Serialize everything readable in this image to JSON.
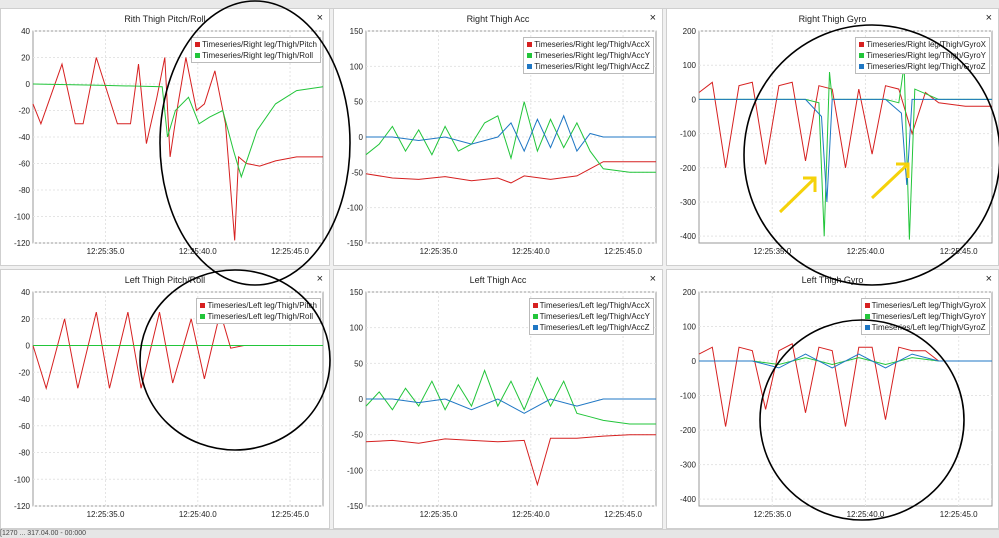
{
  "colors": {
    "red": "#d62020",
    "green": "#22c53a",
    "blue": "#1f77c4",
    "annotation": "#f5d20a",
    "circle": "#000000"
  },
  "panels": [
    {
      "title": "Rith Thigh Pitch/Roll",
      "close": "×",
      "legend": [
        "Timeseries/Right leg/Thigh/Pitch",
        "Timeseries/Right leg/Thigh/Roll"
      ],
      "legend_colors": [
        "red",
        "green"
      ],
      "y_ticks": [
        40,
        20,
        0,
        -20,
        -40,
        -60,
        -80,
        -100,
        -120
      ],
      "x_ticks": [
        "12:25:35.0",
        "12:25:40.0",
        "12:25:45.0"
      ]
    },
    {
      "title": "Right Thigh Acc",
      "close": "×",
      "legend": [
        "Timeseries/Right leg/Thigh/AccX",
        "Timeseries/Right leg/Thigh/AccY",
        "Timeseries/Right leg/Thigh/AccZ"
      ],
      "legend_colors": [
        "red",
        "green",
        "blue"
      ],
      "y_ticks": [
        150,
        100,
        50,
        0,
        -50,
        -100,
        -150
      ],
      "x_ticks": [
        "12:25:35.0",
        "12:25:40.0",
        "12:25:45.0"
      ]
    },
    {
      "title": "Right Thigh Gyro",
      "close": "×",
      "legend": [
        "Timeseries/Right leg/Thigh/GyroX",
        "Timeseries/Right leg/Thigh/GyroY",
        "Timeseries/Right leg/Thigh/GyroZ"
      ],
      "legend_colors": [
        "red",
        "green",
        "blue"
      ],
      "y_ticks": [
        200,
        100,
        0,
        -100,
        -200,
        -300,
        -400
      ],
      "x_ticks": [
        "12:25:35.0",
        "12:25:40.0",
        "12:25:45.0"
      ]
    },
    {
      "title": "Left Thigh Pitch/Roll",
      "close": "×",
      "legend": [
        "Timeseries/Left leg/Thigh/Pitch",
        "Timeseries/Left leg/Thigh/Roll"
      ],
      "legend_colors": [
        "red",
        "green"
      ],
      "y_ticks": [
        40,
        20,
        0,
        -20,
        -40,
        -60,
        -80,
        -100,
        -120
      ],
      "x_ticks": [
        "12:25:35.0",
        "12:25:40.0",
        "12:25:45.0"
      ]
    },
    {
      "title": "Left Thigh Acc",
      "close": "×",
      "legend": [
        "Timeseries/Left leg/Thigh/AccX",
        "Timeseries/Left leg/Thigh/AccY",
        "Timeseries/Left leg/Thigh/AccZ"
      ],
      "legend_colors": [
        "red",
        "green",
        "blue"
      ],
      "y_ticks": [
        150,
        100,
        50,
        0,
        -50,
        -100,
        -150
      ],
      "x_ticks": [
        "12:25:35.0",
        "12:25:40.0",
        "12:25:45.0"
      ]
    },
    {
      "title": "Left Thigh Gyro",
      "close": "×",
      "legend": [
        "Timeseries/Left leg/Thigh/GyroX",
        "Timeseries/Left leg/Thigh/GyroY",
        "Timeseries/Left leg/Thigh/GyroZ"
      ],
      "legend_colors": [
        "red",
        "green",
        "blue"
      ],
      "y_ticks": [
        200,
        100,
        0,
        -100,
        -200,
        -300,
        -400
      ],
      "x_ticks": [
        "12:25:35.0",
        "12:25:40.0",
        "12:25:45.0"
      ]
    }
  ],
  "chart_data": [
    {
      "type": "line",
      "title": "Rith Thigh Pitch/Roll",
      "ylim": [
        -120,
        40
      ],
      "x_tick_labels": [
        "12:25:35.0",
        "12:25:40.0",
        "12:25:45.0"
      ],
      "series": [
        {
          "name": "Timeseries/Right leg/Thigh/Pitch",
          "color": "red",
          "x": [
            0,
            0.6,
            2.2,
            3.2,
            3.8,
            4.8,
            6.4,
            7.4,
            8.0,
            8.6,
            9.4,
            10.0,
            10.4,
            11.0,
            11.6,
            12.4,
            13.0,
            13.8,
            14.6,
            15.3,
            15.6,
            16.2,
            17.2,
            18.4,
            20.0,
            22.0
          ],
          "y": [
            -15,
            -30,
            15,
            -30,
            -30,
            20,
            -30,
            -30,
            15,
            -45,
            -10,
            20,
            -55,
            -15,
            20,
            -20,
            -15,
            10,
            -30,
            -118,
            -55,
            -60,
            -62,
            -58,
            -55,
            -55
          ]
        },
        {
          "name": "Timeseries/Right leg/Thigh/Roll",
          "color": "green",
          "x": [
            0,
            5,
            9.8,
            10.2,
            10.8,
            11.8,
            12.6,
            13.4,
            14.4,
            15.2,
            15.8,
            17.0,
            18.4,
            20.0,
            22.0
          ],
          "y": [
            0,
            -1,
            -2,
            -40,
            -20,
            -10,
            -30,
            -25,
            -20,
            -50,
            -70,
            -35,
            -15,
            -5,
            -2
          ]
        }
      ]
    },
    {
      "type": "line",
      "title": "Right Thigh Acc",
      "ylim": [
        -150,
        150
      ],
      "x_tick_labels": [
        "12:25:35.0",
        "12:25:40.0",
        "12:25:45.0"
      ],
      "series": [
        {
          "name": "Timeseries/Right leg/Thigh/AccX",
          "color": "red",
          "x": [
            0,
            2,
            4,
            6,
            8,
            10,
            11,
            12,
            14,
            16,
            17,
            18,
            20,
            22
          ],
          "y": [
            -52,
            -58,
            -60,
            -56,
            -62,
            -58,
            -65,
            -55,
            -60,
            -55,
            -45,
            -35,
            -35,
            -35
          ]
        },
        {
          "name": "Timeseries/Right leg/Thigh/AccY",
          "color": "green",
          "x": [
            0,
            1,
            2,
            3,
            4,
            5,
            6,
            7,
            8,
            9,
            10,
            11,
            12,
            13,
            14,
            15,
            16,
            17,
            18,
            20,
            22
          ],
          "y": [
            -25,
            -10,
            15,
            -20,
            10,
            -25,
            15,
            -20,
            -10,
            20,
            30,
            -30,
            50,
            -20,
            25,
            -15,
            20,
            -20,
            -45,
            -50,
            -50
          ]
        },
        {
          "name": "Timeseries/Right leg/Thigh/AccZ",
          "color": "blue",
          "x": [
            0,
            2,
            4,
            6,
            8,
            10,
            11,
            12,
            13,
            14,
            15,
            16,
            17,
            18,
            20,
            22
          ],
          "y": [
            0,
            0,
            -5,
            0,
            -10,
            0,
            20,
            -20,
            25,
            -15,
            30,
            -20,
            5,
            0,
            0,
            0
          ]
        }
      ]
    },
    {
      "type": "line",
      "title": "Right Thigh Gyro",
      "ylim": [
        -420,
        200
      ],
      "x_tick_labels": [
        "12:25:35.0",
        "12:25:40.0",
        "12:25:45.0"
      ],
      "series": [
        {
          "name": "Timeseries/Right leg/Thigh/GyroX",
          "color": "red",
          "x": [
            0,
            1,
            2,
            3,
            4,
            5,
            6,
            7,
            8,
            9,
            10,
            11,
            12,
            13,
            14,
            15,
            16,
            17,
            18,
            20,
            22
          ],
          "y": [
            20,
            50,
            -200,
            40,
            50,
            -190,
            40,
            50,
            -180,
            40,
            30,
            -200,
            30,
            -160,
            40,
            30,
            -100,
            20,
            -10,
            -20,
            -20
          ]
        },
        {
          "name": "Timeseries/Right leg/Thigh/GyroY",
          "color": "green",
          "x": [
            0,
            4,
            8,
            9,
            9.4,
            9.8,
            10,
            12,
            14,
            15,
            15.4,
            15.8,
            16.2,
            18,
            20,
            22
          ],
          "y": [
            0,
            0,
            0,
            -10,
            -400,
            80,
            0,
            0,
            0,
            -10,
            100,
            -410,
            30,
            0,
            0,
            0
          ]
        },
        {
          "name": "Timeseries/Right leg/Thigh/GyroZ",
          "color": "blue",
          "x": [
            0,
            4,
            8,
            9.2,
            9.6,
            10,
            12,
            14,
            15.2,
            15.6,
            16,
            18,
            22
          ],
          "y": [
            0,
            0,
            0,
            -50,
            -300,
            0,
            0,
            0,
            -40,
            -250,
            0,
            0,
            0
          ]
        }
      ]
    },
    {
      "type": "line",
      "title": "Left Thigh Pitch/Roll",
      "ylim": [
        -120,
        40
      ],
      "x_tick_labels": [
        "12:25:35.0",
        "12:25:40.0",
        "12:25:45.0"
      ],
      "series": [
        {
          "name": "Timeseries/Left leg/Thigh/Pitch",
          "color": "red",
          "x": [
            0,
            1,
            2.4,
            3.4,
            4.8,
            5.8,
            7.2,
            8.2,
            9.6,
            10.6,
            12.0,
            13.0,
            14.2,
            15.0,
            16.0,
            18.0,
            22.0
          ],
          "y": [
            0,
            -32,
            20,
            -32,
            25,
            -32,
            25,
            -32,
            25,
            -28,
            20,
            -25,
            25,
            -2,
            0,
            0,
            0
          ]
        },
        {
          "name": "Timeseries/Left leg/Thigh/Roll",
          "color": "green",
          "x": [
            0,
            5,
            10,
            15,
            22
          ],
          "y": [
            0,
            0,
            0,
            0,
            0
          ]
        }
      ]
    },
    {
      "type": "line",
      "title": "Left Thigh Acc",
      "ylim": [
        -150,
        150
      ],
      "x_tick_labels": [
        "12:25:35.0",
        "12:25:40.0",
        "12:25:45.0"
      ],
      "series": [
        {
          "name": "Timeseries/Left leg/Thigh/AccX",
          "color": "red",
          "x": [
            0,
            2,
            4,
            6,
            8,
            10,
            12,
            13,
            14,
            16,
            18,
            20,
            22
          ],
          "y": [
            -60,
            -58,
            -62,
            -56,
            -58,
            -60,
            -58,
            -120,
            -55,
            -55,
            -52,
            -50,
            -50
          ]
        },
        {
          "name": "Timeseries/Left leg/Thigh/AccY",
          "color": "green",
          "x": [
            0,
            1,
            2,
            3,
            4,
            5,
            6,
            7,
            8,
            9,
            10,
            11,
            12,
            13,
            14,
            15,
            16,
            17,
            18,
            20,
            22
          ],
          "y": [
            -10,
            10,
            -15,
            15,
            -10,
            25,
            -15,
            20,
            -10,
            40,
            -10,
            25,
            -15,
            30,
            -10,
            25,
            -20,
            -25,
            -30,
            -35,
            -35
          ]
        },
        {
          "name": "Timeseries/Left leg/Thigh/AccZ",
          "color": "blue",
          "x": [
            0,
            2,
            4,
            6,
            8,
            10,
            12,
            14,
            16,
            18,
            20,
            22
          ],
          "y": [
            0,
            0,
            -5,
            0,
            -15,
            0,
            -20,
            0,
            -10,
            0,
            0,
            0
          ]
        }
      ]
    },
    {
      "type": "line",
      "title": "Left Thigh Gyro",
      "ylim": [
        -420,
        200
      ],
      "x_tick_labels": [
        "12:25:35.0",
        "12:25:40.0",
        "12:25:45.0"
      ],
      "series": [
        {
          "name": "Timeseries/Left leg/Thigh/GyroX",
          "color": "red",
          "x": [
            0,
            1,
            2,
            3,
            4,
            5,
            6,
            7,
            8,
            9,
            10,
            11,
            12,
            13,
            14,
            15,
            16,
            17,
            18,
            20,
            22
          ],
          "y": [
            20,
            40,
            -190,
            40,
            30,
            -140,
            30,
            50,
            -150,
            40,
            30,
            -190,
            40,
            40,
            -170,
            40,
            30,
            30,
            0,
            0,
            0
          ]
        },
        {
          "name": "Timeseries/Left leg/Thigh/GyroY",
          "color": "green",
          "x": [
            0,
            4,
            6,
            8,
            10,
            12,
            14,
            16,
            18,
            22
          ],
          "y": [
            0,
            0,
            -10,
            10,
            -10,
            10,
            -10,
            10,
            0,
            0
          ]
        },
        {
          "name": "Timeseries/Left leg/Thigh/GyroZ",
          "color": "blue",
          "x": [
            0,
            4,
            6,
            8,
            10,
            12,
            14,
            16,
            18,
            22
          ],
          "y": [
            0,
            0,
            -20,
            20,
            -20,
            20,
            -20,
            20,
            0,
            0
          ]
        }
      ]
    }
  ],
  "bottombar": {
    "text": "[1270 ... 317.04.00 - 00:000"
  }
}
